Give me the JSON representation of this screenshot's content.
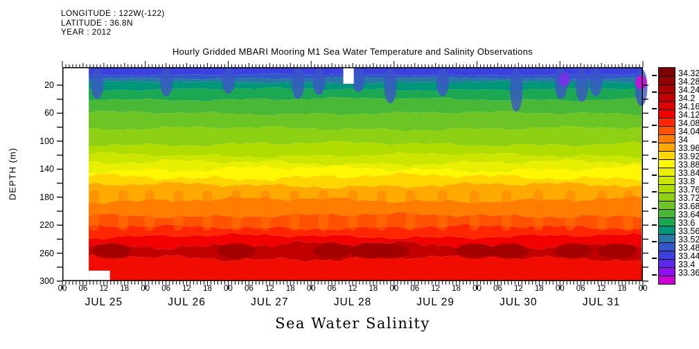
{
  "header": {
    "longitude": "LONGITUDE : 122W(-122)",
    "latitude": "LATITUDE : 36.8N",
    "year": "YEAR : 2012"
  },
  "title": "Hourly Gridded MBARI Mooring M1 Sea Water Temperature and Salinity Observations",
  "footer_label": "Sea Water Salinity",
  "chart_data": {
    "type": "heatmap",
    "title": "Hourly Gridded MBARI Mooring M1 Sea Water Temperature and Salinity Observations",
    "variable_label": "Sea Water Salinity",
    "ylabel": "DEPTH (m)",
    "y_axis": {
      "range_m": [
        0,
        300
      ],
      "inverted": true,
      "ticks_labeled": [
        20,
        60,
        100,
        140,
        180,
        220,
        260,
        300
      ],
      "minor_tick_step_m": 20
    },
    "x_axis": {
      "days": [
        "JUL 25",
        "JUL 26",
        "JUL 27",
        "JUL 28",
        "JUL 29",
        "JUL 30",
        "JUL 31"
      ],
      "hour_labels": [
        "00",
        "06",
        "12",
        "18"
      ],
      "total_hours": 168,
      "labeled_tick_step_hours": 6,
      "minor_tick_step_hours": 1
    },
    "colorbar": {
      "labels_top_to_bottom": [
        "34.32",
        "34.28",
        "34.24",
        "34.2",
        "34.16",
        "34.12",
        "34.08",
        "34.04",
        "34",
        "33.96",
        "33.92",
        "33.88",
        "33.84",
        "33.8",
        "33.76",
        "33.72",
        "33.68",
        "33.64",
        "33.6",
        "33.56",
        "33.52",
        "33.48",
        "33.44",
        "33.4",
        "33.36"
      ],
      "colors_top_to_bottom": [
        "#7a0000",
        "#920000",
        "#aa0000",
        "#c20000",
        "#da0000",
        "#f20000",
        "#ff2600",
        "#ff5200",
        "#ff7e00",
        "#ffaa00",
        "#ffd600",
        "#fff800",
        "#e8f000",
        "#cce600",
        "#b0dc00",
        "#8ed013",
        "#6cc425",
        "#4ab837",
        "#1ca852",
        "#00967a",
        "#2878a4",
        "#3058c8",
        "#3c40dc",
        "#5c28ec",
        "#8c10f0",
        "#cc00d4"
      ],
      "level_step": 0.04
    },
    "bands": [
      {
        "depth_m": 0,
        "amp_m": 0,
        "salinity": "33.50",
        "color": "#3c40dc"
      },
      {
        "depth_m": 5,
        "amp_m": 1.5,
        "salinity": "33.54",
        "color": "#3058c8"
      },
      {
        "depth_m": 10,
        "amp_m": 2,
        "salinity": "33.58",
        "color": "#2878a4"
      },
      {
        "depth_m": 16,
        "amp_m": 2.5,
        "salinity": "33.62",
        "color": "#00967a"
      },
      {
        "depth_m": 26,
        "amp_m": 3,
        "salinity": "33.66",
        "color": "#1ca852"
      },
      {
        "depth_m": 40,
        "amp_m": 3.5,
        "salinity": "33.70",
        "color": "#4ab837"
      },
      {
        "depth_m": 60,
        "amp_m": 4,
        "salinity": "33.74",
        "color": "#6cc425"
      },
      {
        "depth_m": 82,
        "amp_m": 4.5,
        "salinity": "33.78",
        "color": "#8ed013"
      },
      {
        "depth_m": 104,
        "amp_m": 5,
        "salinity": "33.84",
        "color": "#b0dc00"
      },
      {
        "depth_m": 120,
        "amp_m": 5,
        "salinity": "33.88",
        "color": "#cce600"
      },
      {
        "depth_m": 131,
        "amp_m": 6,
        "salinity": "33.92",
        "color": "#e8f000"
      },
      {
        "depth_m": 140,
        "amp_m": 7,
        "salinity": "33.98",
        "color": "#fff800"
      },
      {
        "depth_m": 151,
        "amp_m": 7,
        "salinity": "34.04",
        "color": "#ffd600"
      },
      {
        "depth_m": 163,
        "amp_m": 6,
        "salinity": "34.08",
        "color": "#ffaa00"
      },
      {
        "depth_m": 184,
        "amp_m": 6,
        "salinity": "34.12",
        "color": "#ff7e00"
      },
      {
        "depth_m": 206,
        "amp_m": 5,
        "salinity": "34.16",
        "color": "#ff5200"
      },
      {
        "depth_m": 223,
        "amp_m": 5,
        "salinity": "34.20",
        "color": "#ff2600"
      },
      {
        "depth_m": 236,
        "amp_m": 5,
        "salinity": "34.24",
        "color": "#f20000"
      },
      {
        "depth_m": 248,
        "amp_m": 8,
        "salinity": "34.28",
        "color": "#c20000"
      },
      {
        "depth_m": 267,
        "amp_m": 7,
        "salinity": "34.24",
        "color": "#f00c00"
      }
    ],
    "features": {
      "surface_intrusions": [
        {
          "t": 0.06,
          "depth_m": 40
        },
        {
          "t": 0.179,
          "depth_m": 36
        },
        {
          "t": 0.286,
          "depth_m": 32
        },
        {
          "t": 0.406,
          "depth_m": 40
        },
        {
          "t": 0.442,
          "depth_m": 34
        },
        {
          "t": 0.51,
          "depth_m": 30
        },
        {
          "t": 0.565,
          "depth_m": 46
        },
        {
          "t": 0.655,
          "depth_m": 36
        },
        {
          "t": 0.782,
          "depth_m": 58
        },
        {
          "t": 0.859,
          "depth_m": 40
        },
        {
          "t": 0.895,
          "depth_m": 44
        },
        {
          "t": 0.919,
          "depth_m": 36
        },
        {
          "t": 0.997,
          "depth_m": 50
        }
      ],
      "surface_spots": [
        {
          "t": 0.865,
          "depth_m": 12,
          "color": "#7a30ea"
        },
        {
          "t": 0.997,
          "depth_m": 16,
          "color": "#cf10d8"
        }
      ],
      "deep_cores": [
        {
          "t": 0.085
        },
        {
          "t": 0.3
        },
        {
          "t": 0.465
        },
        {
          "t": 0.53
        },
        {
          "t": 0.565
        },
        {
          "t": 0.71
        },
        {
          "t": 0.77
        },
        {
          "t": 0.88
        },
        {
          "t": 0.955
        }
      ],
      "column_streaks": [
        {
          "t": 0.055
        },
        {
          "t": 0.105
        },
        {
          "t": 0.15
        },
        {
          "t": 0.2
        },
        {
          "t": 0.25
        },
        {
          "t": 0.3
        },
        {
          "t": 0.35
        },
        {
          "t": 0.4
        },
        {
          "t": 0.45
        },
        {
          "t": 0.5
        },
        {
          "t": 0.55
        },
        {
          "t": 0.6
        },
        {
          "t": 0.655
        },
        {
          "t": 0.71
        },
        {
          "t": 0.765
        },
        {
          "t": 0.82
        },
        {
          "t": 0.875
        },
        {
          "t": 0.93
        },
        {
          "t": 0.975
        }
      ]
    },
    "no_data_gaps": [
      {
        "t0": 0,
        "t1": 0.0455,
        "d0": 0,
        "d1": 300
      },
      {
        "t0": 0.0455,
        "t1": 0.082,
        "d0": 285,
        "d1": 300
      },
      {
        "t0": 0.484,
        "t1": 0.502,
        "d0": 0,
        "d1": 18
      }
    ]
  }
}
